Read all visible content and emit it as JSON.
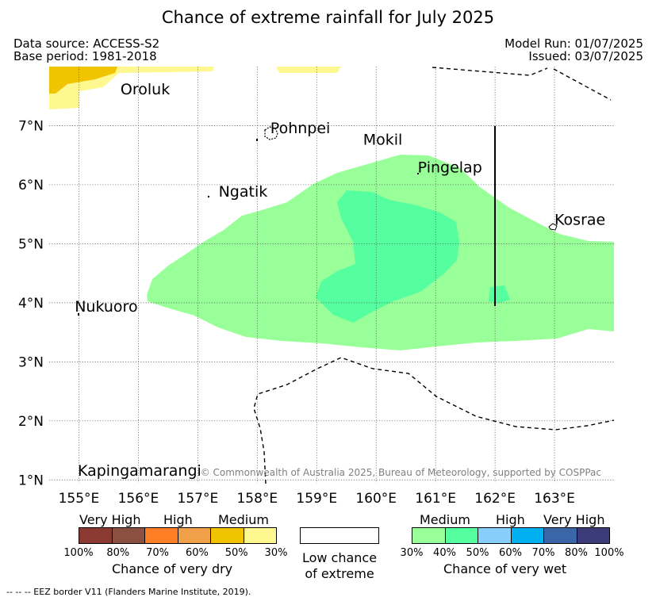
{
  "title": "Chance of extreme rainfall for July 2025",
  "meta": {
    "data_source": "Data source: ACCESS-S2",
    "base_period": "Base period: 1981-2018",
    "model_run": "Model Run: 01/07/2025",
    "issued": "Issued: 03/07/2025"
  },
  "axes": {
    "lon_ticks": [
      "155°E",
      "156°E",
      "157°E",
      "158°E",
      "159°E",
      "160°E",
      "161°E",
      "162°E",
      "163°E"
    ],
    "lat_ticks": [
      "7°N",
      "6°N",
      "5°N",
      "4°N",
      "3°N",
      "2°N",
      "1°N"
    ],
    "lon_range": [
      154.5,
      164
    ],
    "lat_range": [
      0.95,
      8
    ]
  },
  "places": [
    {
      "name": "Oroluk",
      "lon": 155.7,
      "lat": 7.53
    },
    {
      "name": "Pohnpei",
      "lon": 158.22,
      "lat": 6.87
    },
    {
      "name": "Mokil",
      "lon": 159.78,
      "lat": 6.68
    },
    {
      "name": "Pingelap",
      "lon": 160.7,
      "lat": 6.21
    },
    {
      "name": "Ngatik",
      "lon": 157.35,
      "lat": 5.8
    },
    {
      "name": "Kosrae",
      "lon": 163.0,
      "lat": 5.32
    },
    {
      "name": "Nukuoro",
      "lon": 154.93,
      "lat": 3.85
    },
    {
      "name": "Kapingamarangi",
      "lon": 154.98,
      "lat": 1.07
    }
  ],
  "legend": {
    "dry": {
      "categories": [
        "Very High",
        "High",
        "Medium"
      ],
      "percents": [
        "100%",
        "80%",
        "70%",
        "60%",
        "50%",
        "30%"
      ],
      "caption": "Chance of very dry",
      "colors": [
        "#8b3a32",
        "#8b5040",
        "#ff7f27",
        "#f0a048",
        "#f0c400",
        "#fff891"
      ]
    },
    "low": {
      "line1": "Low chance",
      "line2": "of extreme"
    },
    "wet": {
      "categories": [
        "Medium",
        "High",
        "Very High"
      ],
      "percents": [
        "30%",
        "40%",
        "50%",
        "60%",
        "70%",
        "80%",
        "100%"
      ],
      "caption": "Chance of very wet",
      "colors": [
        "#99ff99",
        "#55ff9f",
        "#87cefa",
        "#00b0f0",
        "#3a66a8",
        "#3b3b7a"
      ]
    }
  },
  "copyright": "© Commonwealth of Australia 2025, Bureau of Meteorology, supported by COSPPac",
  "footnote": "-- -- -- EEZ border V11 (Flanders Marine Institute, 2019)."
}
